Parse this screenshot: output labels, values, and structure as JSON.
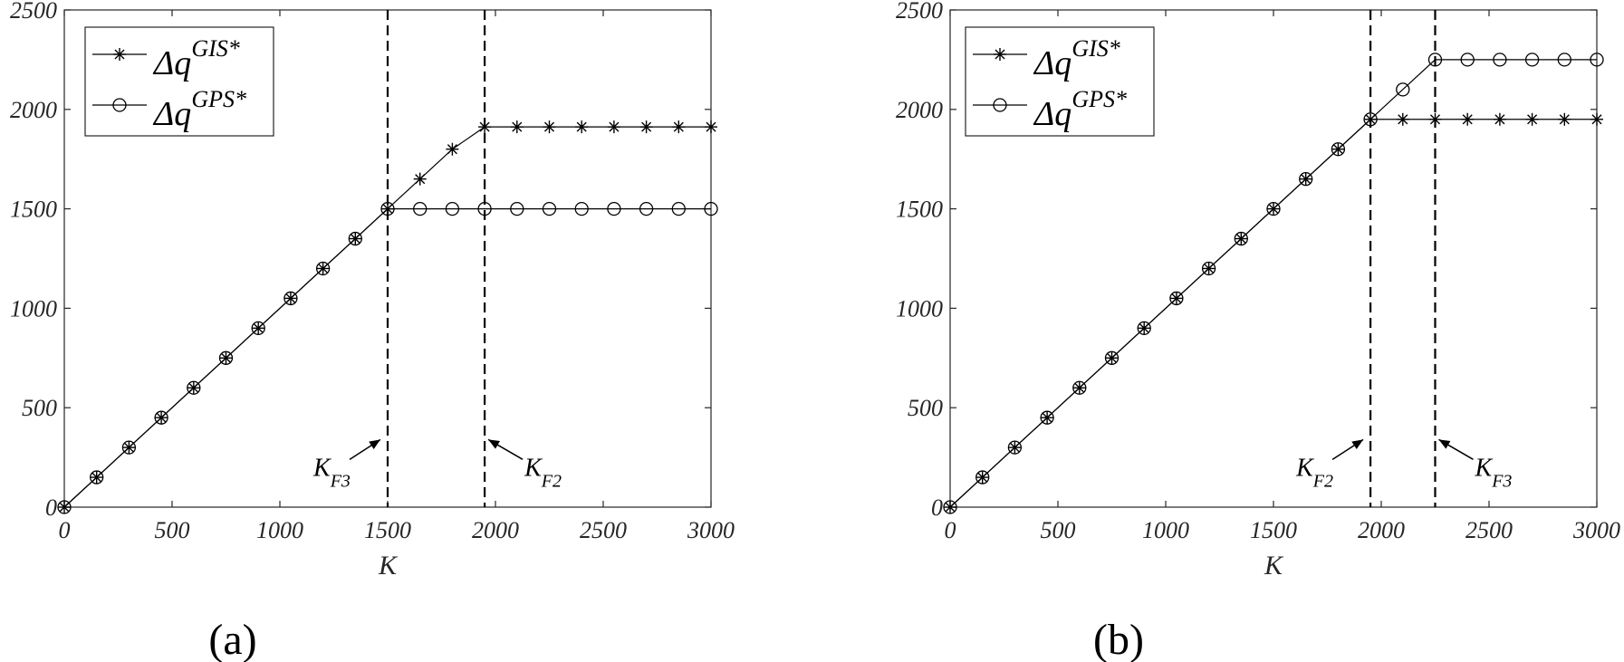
{
  "chart_data": [
    {
      "type": "line",
      "panel_label": "(a)",
      "xlabel": "K",
      "ylabel": "",
      "xlim": [
        0,
        3000
      ],
      "ylim": [
        0,
        2500
      ],
      "xticks": [
        "0",
        "500",
        "1000",
        "1500",
        "2000",
        "2500",
        "3000"
      ],
      "yticks": [
        "0",
        "500",
        "1000",
        "1500",
        "2000",
        "2500"
      ],
      "xtick_values": [
        0,
        500,
        1000,
        1500,
        2000,
        2500,
        3000
      ],
      "ytick_values": [
        0,
        500,
        1000,
        1500,
        2000,
        2500
      ],
      "grid": false,
      "legend_position": "top-left",
      "series": [
        {
          "name_main": "Δq",
          "name_sup": "GIS*",
          "marker": "asterisk",
          "x": [
            0,
            150,
            300,
            450,
            600,
            750,
            900,
            1050,
            1200,
            1350,
            1500,
            1650,
            1800,
            1950,
            2100,
            2250,
            2400,
            2550,
            2700,
            2850,
            3000
          ],
          "y": [
            0,
            150,
            300,
            450,
            600,
            750,
            900,
            1050,
            1200,
            1350,
            1500,
            1650,
            1800,
            1912,
            1912,
            1912,
            1912,
            1912,
            1912,
            1912,
            1912
          ]
        },
        {
          "name_main": "Δq",
          "name_sup": "GPS*",
          "marker": "circle",
          "x": [
            0,
            150,
            300,
            450,
            600,
            750,
            900,
            1050,
            1200,
            1350,
            1500,
            1650,
            1800,
            1950,
            2100,
            2250,
            2400,
            2550,
            2700,
            2850,
            3000
          ],
          "y": [
            0,
            150,
            300,
            450,
            600,
            750,
            900,
            1050,
            1200,
            1350,
            1500,
            1500,
            1500,
            1500,
            1500,
            1500,
            1500,
            1500,
            1500,
            1500,
            1500
          ]
        }
      ],
      "vlines": [
        1500,
        1950
      ],
      "annotations": [
        {
          "main": "K",
          "sub": "F3",
          "side": "left",
          "target_x": 1500,
          "target_y": 340
        },
        {
          "main": "K",
          "sub": "F2",
          "side": "right",
          "target_x": 1950,
          "target_y": 340
        }
      ]
    },
    {
      "type": "line",
      "panel_label": "(b)",
      "xlabel": "K",
      "ylabel": "",
      "xlim": [
        0,
        3000
      ],
      "ylim": [
        0,
        2500
      ],
      "xticks": [
        "0",
        "500",
        "1000",
        "1500",
        "2000",
        "2500",
        "3000"
      ],
      "yticks": [
        "0",
        "500",
        "1000",
        "1500",
        "2000",
        "2500"
      ],
      "xtick_values": [
        0,
        500,
        1000,
        1500,
        2000,
        2500,
        3000
      ],
      "ytick_values": [
        0,
        500,
        1000,
        1500,
        2000,
        2500
      ],
      "grid": false,
      "legend_position": "top-left",
      "series": [
        {
          "name_main": "Δq",
          "name_sup": "GIS*",
          "marker": "asterisk",
          "x": [
            0,
            150,
            300,
            450,
            600,
            750,
            900,
            1050,
            1200,
            1350,
            1500,
            1650,
            1800,
            1950,
            2100,
            2250,
            2400,
            2550,
            2700,
            2850,
            3000
          ],
          "y": [
            0,
            150,
            300,
            450,
            600,
            750,
            900,
            1050,
            1200,
            1350,
            1500,
            1650,
            1800,
            1950,
            1950,
            1950,
            1950,
            1950,
            1950,
            1950,
            1950
          ]
        },
        {
          "name_main": "Δq",
          "name_sup": "GPS*",
          "marker": "circle",
          "x": [
            0,
            150,
            300,
            450,
            600,
            750,
            900,
            1050,
            1200,
            1350,
            1500,
            1650,
            1800,
            1950,
            2100,
            2250,
            2400,
            2550,
            2700,
            2850,
            3000
          ],
          "y": [
            0,
            150,
            300,
            450,
            600,
            750,
            900,
            1050,
            1200,
            1350,
            1500,
            1650,
            1800,
            1950,
            2100,
            2250,
            2250,
            2250,
            2250,
            2250,
            2250
          ]
        }
      ],
      "vlines": [
        1950,
        2250
      ],
      "annotations": [
        {
          "main": "K",
          "sub": "F2",
          "side": "left",
          "target_x": 1950,
          "target_y": 340
        },
        {
          "main": "K",
          "sub": "F3",
          "side": "right",
          "target_x": 2250,
          "target_y": 340
        }
      ]
    }
  ]
}
